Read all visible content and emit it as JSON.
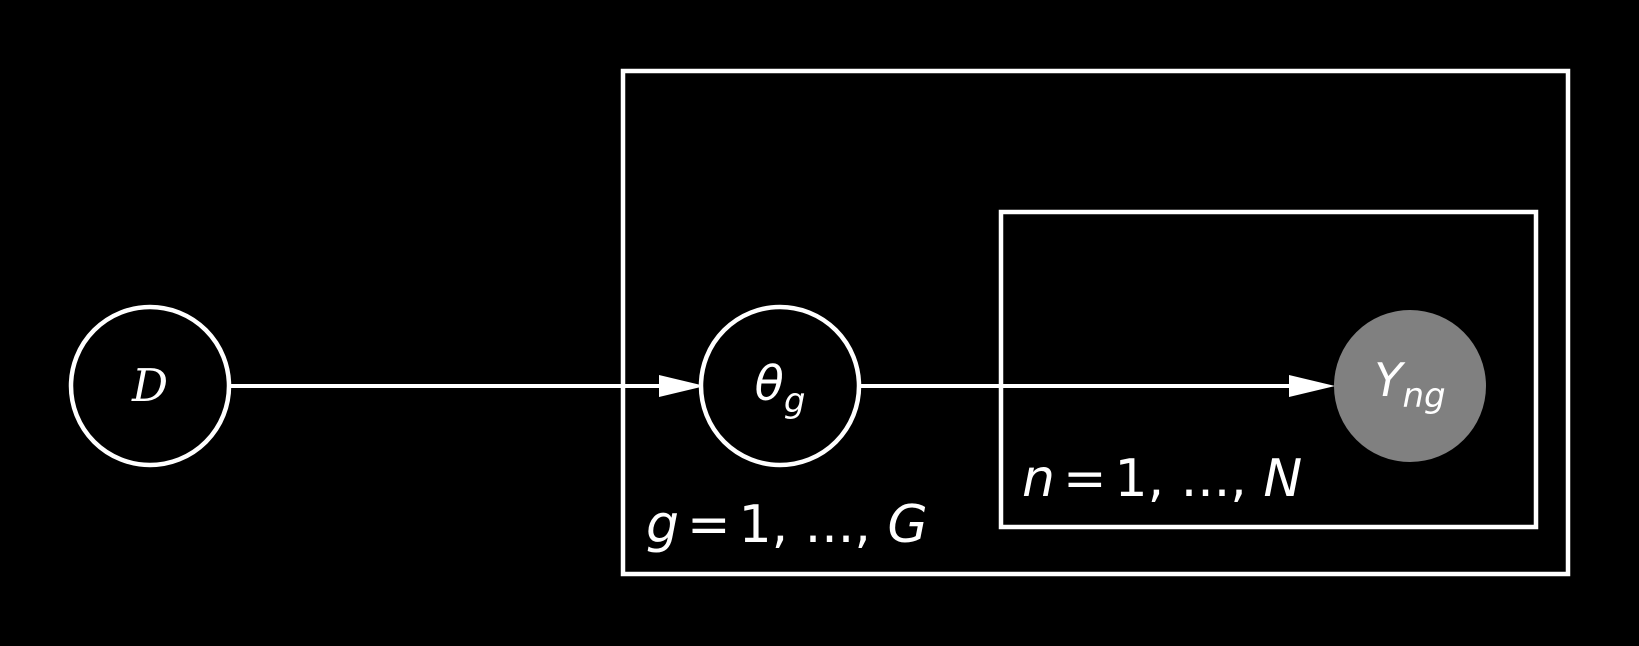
{
  "diagram": {
    "title": "",
    "nodes": {
      "d": {
        "symbol": "D",
        "kind": "latent"
      },
      "theta": {
        "symbol": "θ",
        "subscript": "g",
        "kind": "latent"
      },
      "y": {
        "symbol": "Y",
        "subscript": "ng",
        "kind": "observed"
      }
    },
    "edges": [
      {
        "from": "D",
        "to": "θg"
      },
      {
        "from": "θg",
        "to": "Yng"
      }
    ],
    "plates": {
      "outer": {
        "index": "g",
        "equals": "=",
        "range": "1, ..., ",
        "limit": "G"
      },
      "inner": {
        "index": "n",
        "equals": "=",
        "range": "1, ..., ",
        "limit": "N"
      }
    },
    "colors": {
      "background": "#000000",
      "stroke": "#ffffff",
      "observed_fill": "#808080"
    }
  }
}
